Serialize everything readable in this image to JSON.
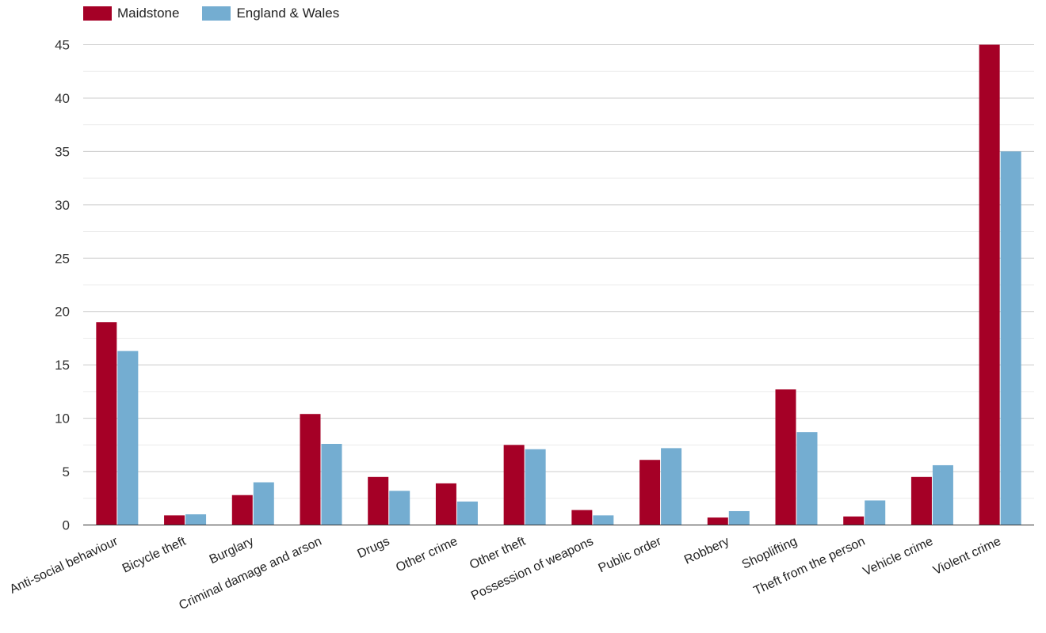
{
  "chart_data": {
    "type": "bar",
    "categories": [
      "Anti-social behaviour",
      "Bicycle theft",
      "Burglary",
      "Criminal damage and arson",
      "Drugs",
      "Other crime",
      "Other theft",
      "Possession of weapons",
      "Public order",
      "Robbery",
      "Shoplifting",
      "Theft from the person",
      "Vehicle crime",
      "Violent crime"
    ],
    "series": [
      {
        "name": "Maidstone",
        "color": "#a50026",
        "values": [
          19.0,
          0.9,
          2.8,
          10.4,
          4.5,
          3.9,
          7.5,
          1.4,
          6.1,
          0.7,
          12.7,
          0.8,
          4.5,
          45.0
        ]
      },
      {
        "name": "England & Wales",
        "color": "#74add1",
        "values": [
          16.3,
          1.0,
          4.0,
          7.6,
          3.2,
          2.2,
          7.1,
          0.9,
          7.2,
          1.3,
          8.7,
          2.3,
          5.6,
          35.0
        ]
      }
    ],
    "y_ticks": [
      "0",
      "5",
      "10",
      "15",
      "20",
      "25",
      "30",
      "35",
      "40",
      "45"
    ],
    "ylim": [
      0,
      45
    ],
    "grid": true,
    "legend_position": "top-left"
  }
}
